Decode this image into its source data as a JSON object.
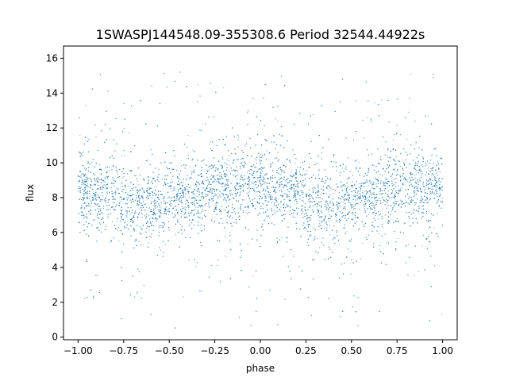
{
  "chart_data": {
    "type": "scatter",
    "title": "1SWASPJ144548.09-355308.6 Period 32544.44922s",
    "xlabel": "phase",
    "ylabel": "flux",
    "xlim": [
      -1.08,
      1.08
    ],
    "ylim": [
      -0.15,
      16.7
    ],
    "xticks": [
      -1.0,
      -0.75,
      -0.5,
      -0.25,
      0.0,
      0.25,
      0.5,
      0.75,
      1.0
    ],
    "xtick_labels": [
      "−1.00",
      "−0.75",
      "−0.50",
      "−0.25",
      "0.00",
      "0.25",
      "0.50",
      "0.75",
      "1.00"
    ],
    "yticks": [
      0,
      2,
      4,
      6,
      8,
      10,
      12,
      14,
      16
    ],
    "ytick_labels": [
      "0",
      "2",
      "4",
      "6",
      "8",
      "10",
      "12",
      "14",
      "16"
    ],
    "grid": false,
    "legend": "none",
    "marker_color": "#1f77b4",
    "x_range": [
      -1.0,
      1.0
    ],
    "y_range": [
      0.5,
      16.1
    ],
    "series": [
      {
        "x": [
          -0.95,
          -0.85,
          -0.75,
          -0.65,
          -0.6,
          -0.55,
          -0.45,
          -0.35,
          -0.25,
          -0.15,
          -0.05,
          0.05,
          0.15,
          0.25,
          0.35,
          0.4,
          0.45,
          0.55,
          0.65,
          0.75,
          0.85,
          0.95
        ],
        "y": [
          8.4,
          8.3,
          8.0,
          7.7,
          7.5,
          7.6,
          7.9,
          8.2,
          8.6,
          8.7,
          8.6,
          8.5,
          8.4,
          8.1,
          7.7,
          7.5,
          7.6,
          7.9,
          8.3,
          8.6,
          8.6,
          8.5
        ]
      }
    ]
  }
}
